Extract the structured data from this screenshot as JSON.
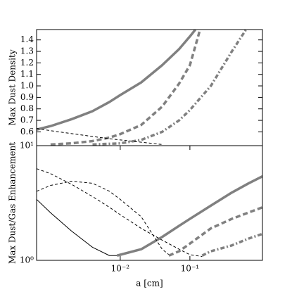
{
  "chart_data": [
    {
      "type": "line",
      "ylabel": "Max Dust Density",
      "xscale": "log",
      "xlim": [
        0.00063,
        1.1
      ],
      "ylim": [
        0.48,
        1.49
      ],
      "yticks": [
        0.6,
        0.7,
        0.8,
        0.9,
        {
          "value": 1,
          "label": "1.0"
        },
        1.1,
        1.2,
        1.3,
        1.4
      ],
      "series": [
        {
          "color": "#808080",
          "linestyle": "solid",
          "linewidth": 3.5,
          "x": [
            0.00063,
            0.001,
            0.002,
            0.004,
            0.007,
            0.01,
            0.02,
            0.04,
            0.07,
            0.1,
            0.12
          ],
          "values": [
            0.62,
            0.65,
            0.71,
            0.78,
            0.86,
            0.92,
            1.03,
            1.18,
            1.32,
            1.43,
            1.49
          ]
        },
        {
          "color": "#808080",
          "linestyle": "dashed",
          "linewidth": 3.5,
          "x": [
            0.001,
            0.002,
            0.004,
            0.007,
            0.01,
            0.02,
            0.04,
            0.07,
            0.1,
            0.14
          ],
          "values": [
            0.49,
            0.5,
            0.52,
            0.55,
            0.58,
            0.66,
            0.82,
            1.02,
            1.18,
            1.49
          ]
        },
        {
          "color": "#808080",
          "linestyle": "dashdot",
          "linewidth": 3.5,
          "x": [
            0.004,
            0.01,
            0.02,
            0.04,
            0.07,
            0.1,
            0.2,
            0.4,
            0.64
          ],
          "values": [
            0.49,
            0.5,
            0.53,
            0.6,
            0.7,
            0.79,
            1.0,
            1.3,
            1.49
          ]
        },
        {
          "color": "#000000",
          "linestyle": "dashed",
          "linewidth": 1,
          "x": [
            0.00063,
            0.001,
            0.002,
            0.004,
            0.007,
            0.01,
            0.02,
            0.04
          ],
          "values": [
            0.63,
            0.61,
            0.585,
            0.56,
            0.54,
            0.53,
            0.51,
            0.49
          ]
        }
      ]
    },
    {
      "type": "line",
      "ylabel": "Max Dust/Gas Enhancement",
      "xlabel": "a [cm]",
      "xscale": "log",
      "yscale": "log",
      "xlim": [
        0.00063,
        1.1
      ],
      "ylim": [
        1,
        10
      ],
      "xticks": [
        {
          "value": 0.01,
          "label": "10⁻²"
        },
        {
          "value": 0.1,
          "label": "10⁻¹"
        }
      ],
      "yticks": [
        {
          "value": 1,
          "label": "10⁰"
        },
        {
          "value": 10,
          "label": "10¹"
        }
      ],
      "series": [
        {
          "color": "#000000",
          "linestyle": "solid",
          "linewidth": 1,
          "x": [
            0.00063,
            0.001,
            0.002,
            0.004,
            0.007,
            0.009
          ],
          "values": [
            3.4,
            2.6,
            1.8,
            1.3,
            1.1,
            1.1
          ]
        },
        {
          "color": "#808080",
          "linestyle": "solid",
          "linewidth": 3.5,
          "x": [
            0.009,
            0.02,
            0.04,
            0.07,
            0.1,
            0.2,
            0.4,
            0.7,
            1.1
          ],
          "values": [
            1.1,
            1.25,
            1.6,
            2.0,
            2.3,
            3.0,
            3.9,
            4.7,
            5.4
          ]
        },
        {
          "color": "#000000",
          "linestyle": "dashed",
          "linewidth": 1,
          "x": [
            0.00063,
            0.001,
            0.002,
            0.004,
            0.007,
            0.01,
            0.02,
            0.04,
            0.07,
            0.1,
            0.15
          ],
          "values": [
            6.3,
            5.7,
            4.6,
            3.6,
            2.9,
            2.5,
            1.9,
            1.5,
            1.25,
            1.12,
            1.08
          ]
        },
        {
          "color": "#000000",
          "linestyle": "dashed",
          "linewidth": 1,
          "x": [
            0.00063,
            0.001,
            0.002,
            0.004,
            0.007,
            0.01,
            0.02,
            0.04,
            0.05
          ],
          "values": [
            4.0,
            4.5,
            4.9,
            4.7,
            4.0,
            3.4,
            2.4,
            1.25,
            1.12
          ]
        },
        {
          "color": "#808080",
          "linestyle": "dashed",
          "linewidth": 3.5,
          "x": [
            0.05,
            0.07,
            0.1,
            0.2,
            0.4,
            1.1
          ],
          "values": [
            1.1,
            1.2,
            1.4,
            1.9,
            2.3,
            2.9
          ]
        },
        {
          "color": "#808080",
          "linestyle": "dashdot",
          "linewidth": 3.5,
          "x": [
            0.15,
            0.2,
            0.4,
            0.7,
            1.1
          ],
          "values": [
            1.1,
            1.2,
            1.35,
            1.55,
            1.7
          ]
        }
      ]
    }
  ]
}
